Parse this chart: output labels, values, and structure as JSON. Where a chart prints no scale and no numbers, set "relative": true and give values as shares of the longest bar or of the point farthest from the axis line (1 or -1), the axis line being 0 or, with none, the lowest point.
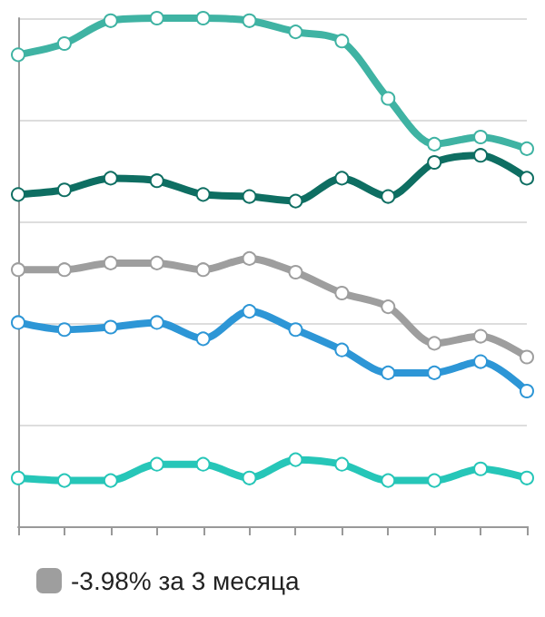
{
  "chart_data": {
    "type": "line",
    "relative": true,
    "categories": [
      null,
      null,
      null,
      null,
      null,
      null,
      null,
      null,
      null,
      null,
      null,
      null
    ],
    "series": [
      {
        "color": "#3fb3a3",
        "values": [
          0.928,
          0.95,
          0.995,
          1,
          1,
          0.995,
          0.973,
          0.955,
          0.842,
          0.752,
          0.766,
          0.743
        ]
      },
      {
        "color": "#0e6e62",
        "values": [
          0.653,
          0.662,
          0.685,
          0.68,
          0.653,
          0.649,
          0.64,
          0.685,
          0.649,
          0.716,
          0.73,
          0.685
        ]
      },
      {
        "name": "-3.98% за 3 месяца",
        "color": "#9e9e9e",
        "values": [
          0.505,
          0.505,
          0.518,
          0.518,
          0.505,
          0.527,
          0.5,
          0.459,
          0.432,
          0.36,
          0.374,
          0.333
        ]
      },
      {
        "color": "#2d96d6",
        "values": [
          0.401,
          0.387,
          0.392,
          0.401,
          0.369,
          0.423,
          0.387,
          0.347,
          0.302,
          0.302,
          0.324,
          0.266
        ]
      },
      {
        "color": "#26c6b8",
        "values": [
          0.095,
          0.09,
          0.09,
          0.122,
          0.122,
          0.095,
          0.131,
          0.122,
          0.09,
          0.09,
          0.113,
          0.095
        ]
      }
    ],
    "grid": "y",
    "legend": "bottom left",
    "marker": "circle",
    "line_style": "solid"
  }
}
